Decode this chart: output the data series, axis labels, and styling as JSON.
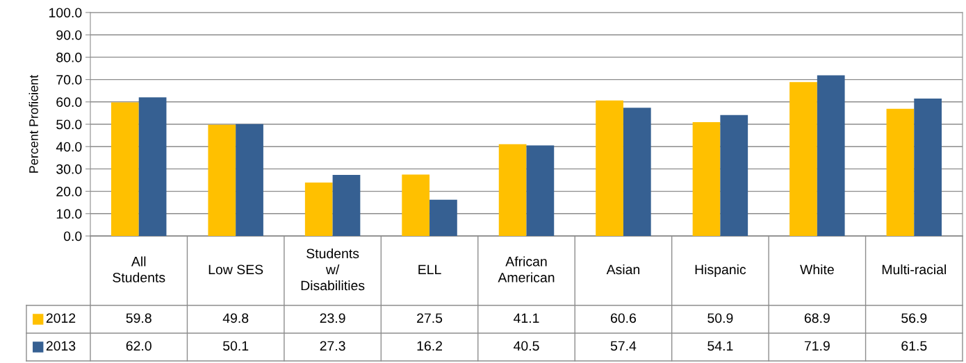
{
  "chart_data": {
    "type": "bar",
    "ylabel": "Percent Proficient",
    "categories": [
      "All\nStudents",
      "Low SES",
      "Students\nw/\nDisabilities",
      "ELL",
      "African\nAmerican",
      "Asian",
      "Hispanic",
      "White",
      "Multi-racial"
    ],
    "series": [
      {
        "name": "2012",
        "color": "#ffc000",
        "values": [
          59.8,
          49.8,
          23.9,
          27.5,
          41.1,
          60.6,
          50.9,
          68.9,
          56.9
        ],
        "value_labels": [
          "59.8",
          "49.8",
          "23.9",
          "27.5",
          "41.1",
          "60.6",
          "50.9",
          "68.9",
          "56.9"
        ]
      },
      {
        "name": "2013",
        "color": "#366092",
        "values": [
          62.0,
          50.1,
          27.3,
          16.2,
          40.5,
          57.4,
          54.1,
          71.9,
          61.5
        ],
        "value_labels": [
          "62.0",
          "50.1",
          "27.3",
          "16.2",
          "40.5",
          "57.4",
          "54.1",
          "71.9",
          "61.5"
        ]
      }
    ],
    "ylim": [
      0,
      100
    ],
    "yticks": [
      {
        "value": 0,
        "label": "0.0"
      },
      {
        "value": 10,
        "label": "10.0"
      },
      {
        "value": 20,
        "label": "20.0"
      },
      {
        "value": 30,
        "label": "30.0"
      },
      {
        "value": 40,
        "label": "40.0"
      },
      {
        "value": 50,
        "label": "50.0"
      },
      {
        "value": 60,
        "label": "60.0"
      },
      {
        "value": 70,
        "label": "70.0"
      },
      {
        "value": 80,
        "label": "80.0"
      },
      {
        "value": 90,
        "label": "90.0"
      },
      {
        "value": 100,
        "label": "100.0"
      }
    ],
    "grid": "y",
    "legend": "bottom left"
  }
}
